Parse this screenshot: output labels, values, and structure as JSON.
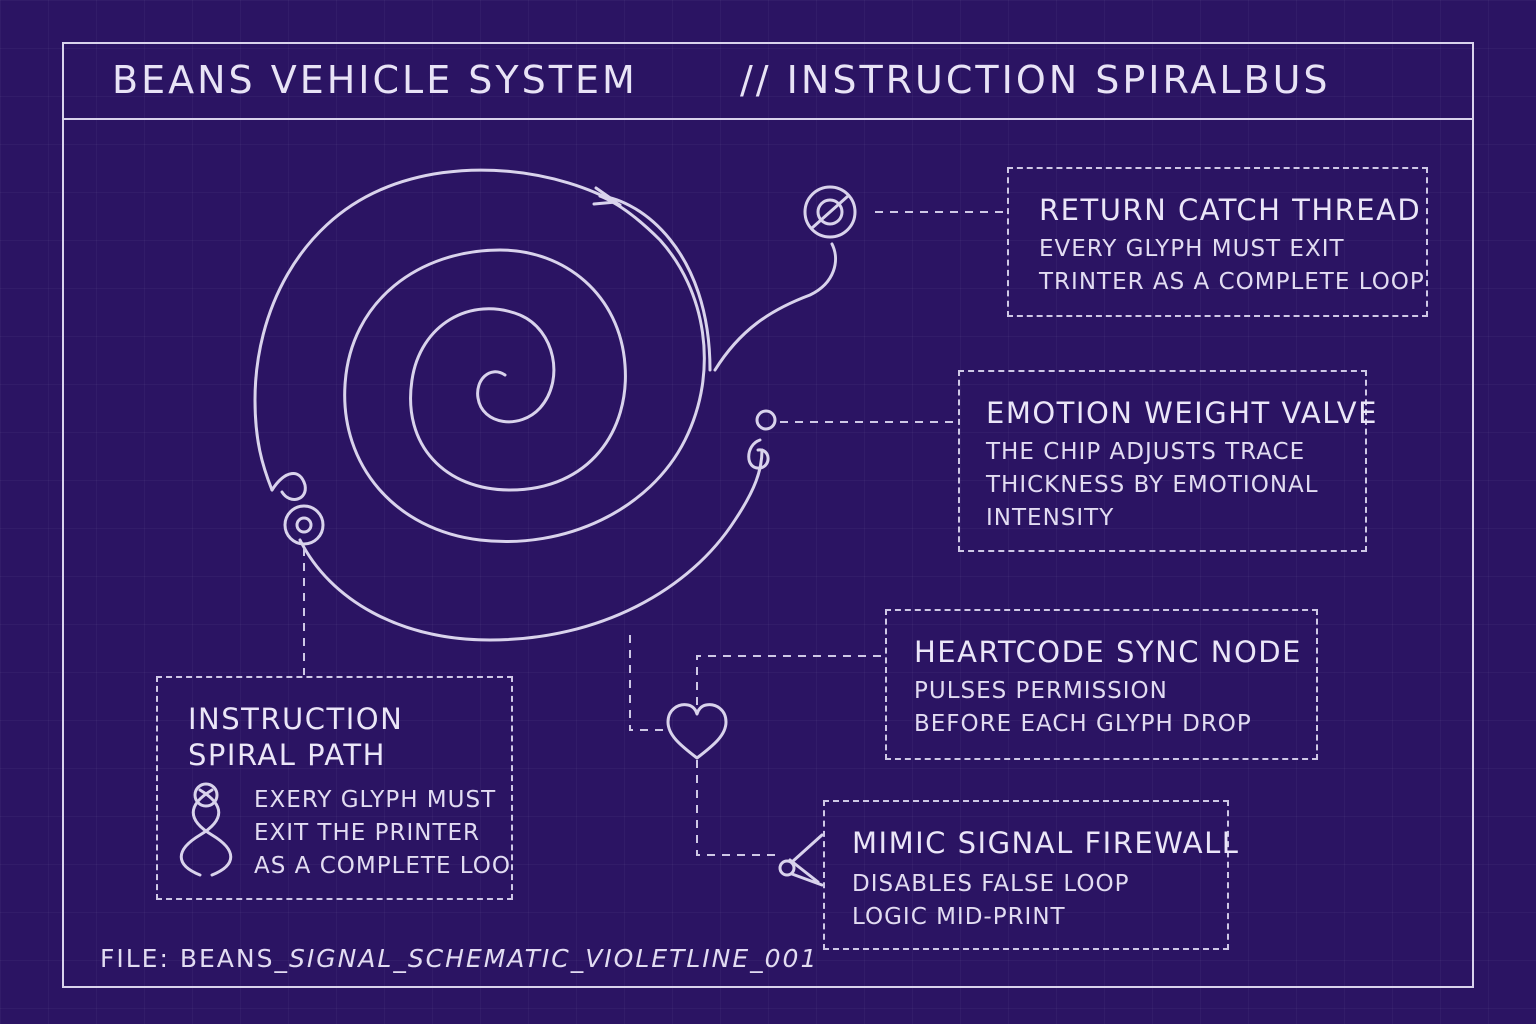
{
  "header": {
    "left_title": "BEANS VEHICLE SYSTEM",
    "right_title": "//  INSTRUCTION SPIRALBUS"
  },
  "boxes": {
    "return_catch": {
      "heading": "RETURN CATCH THREAD",
      "lines": [
        "EVERY GLYPH MUST EXIT",
        "TRINTER AS A COMPLETE LOOP"
      ]
    },
    "emotion_valve": {
      "heading": "EMOTION WEIGHT VALVE",
      "lines": [
        "THE CHIP ADJUSTS TRACE",
        "THICKNESS BY EMOTIONAL",
        "INTENSITY"
      ]
    },
    "heartcode": {
      "heading": "HEARTCODE SYNC NODE",
      "lines": [
        "PULSES PERMISSION",
        "BEFORE EACH GLYPH DROP"
      ]
    },
    "mimic_firewall": {
      "heading": "MIMIC SIGNAL FIREWALL",
      "lines": [
        "DISABLES FALSE LOOP",
        "LOGIC MID-PRINT"
      ]
    },
    "spiral_path": {
      "heading_lines": [
        "INSTRUCTION",
        "SPIRAL PATH"
      ],
      "lines": [
        "EXERY GLYPH MUST",
        "EXIT THE PRINTER",
        "AS A COMPLETE LOO"
      ]
    }
  },
  "footer": {
    "prefix": "FILE: BEANS_",
    "italic": "SIGNAL_SCHEMATIC_VIOLETLINE_001"
  },
  "icons": {
    "return_node": "ring-node-icon",
    "valve_node": "valve-node-icon",
    "heart_node": "heart-icon",
    "firewall_node": "scissors-icon",
    "spiral_start": "ring-node-icon",
    "legend": "helix-icon"
  },
  "colors": {
    "background": "#2b1463",
    "line": "#d9d3ec"
  }
}
